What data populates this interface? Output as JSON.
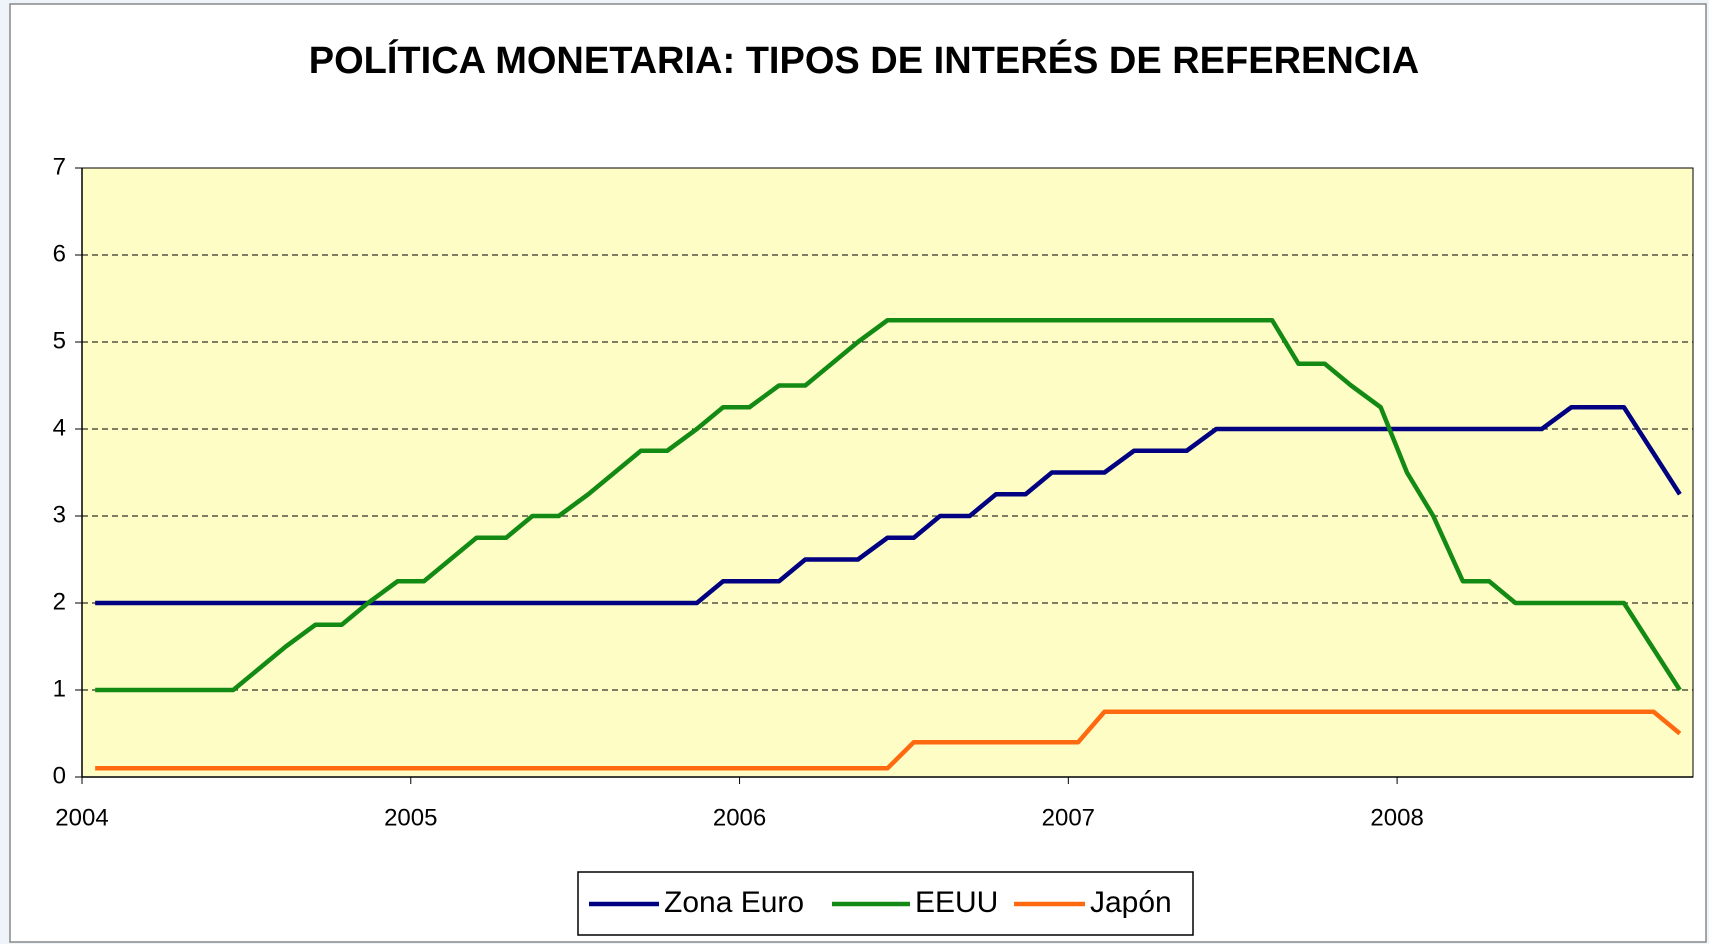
{
  "chart_data": {
    "type": "line",
    "title": "POLÍTICA MONETARIA: TIPOS DE INTERÉS DE REFERENCIA",
    "xlim": [
      2004,
      2008.9
    ],
    "xticks": [
      2004,
      2005,
      2006,
      2007,
      2008
    ],
    "ylim": [
      0,
      7
    ],
    "yticks": [
      0,
      1,
      2,
      3,
      4,
      5,
      6,
      7
    ],
    "grid": true,
    "legend": "bottom",
    "series": [
      {
        "name": "Zona Euro",
        "color": "#000080",
        "x": [
          2004.04,
          2005.87,
          2005.95,
          2006.12,
          2006.2,
          2006.36,
          2006.45,
          2006.53,
          2006.61,
          2006.7,
          2006.78,
          2006.87,
          2006.95,
          2007.11,
          2007.2,
          2007.36,
          2007.45,
          2008.44,
          2008.53,
          2008.69,
          2008.86
        ],
        "values": [
          2,
          2,
          2.25,
          2.25,
          2.5,
          2.5,
          2.75,
          2.75,
          3,
          3,
          3.25,
          3.25,
          3.5,
          3.5,
          3.75,
          3.75,
          4,
          4,
          4.25,
          4.25,
          3.25
        ]
      },
      {
        "name": "EEUU",
        "color": "#138a13",
        "x": [
          2004.04,
          2004.46,
          2004.54,
          2004.62,
          2004.71,
          2004.79,
          2004.87,
          2004.96,
          2005.04,
          2005.12,
          2005.2,
          2005.29,
          2005.37,
          2005.45,
          2005.54,
          2005.62,
          2005.7,
          2005.78,
          2005.87,
          2005.95,
          2006.03,
          2006.12,
          2006.2,
          2006.28,
          2006.36,
          2006.45,
          2007.62,
          2007.7,
          2007.78,
          2007.86,
          2007.95,
          2008.03,
          2008.11,
          2008.2,
          2008.28,
          2008.36,
          2008.69,
          2008.86
        ],
        "values": [
          1,
          1,
          1.25,
          1.5,
          1.75,
          1.75,
          2,
          2.25,
          2.25,
          2.5,
          2.75,
          2.75,
          3,
          3,
          3.25,
          3.5,
          3.75,
          3.75,
          4,
          4.25,
          4.25,
          4.5,
          4.5,
          4.75,
          5,
          5.25,
          5.25,
          4.75,
          4.75,
          4.5,
          4.25,
          3.5,
          3,
          2.25,
          2.25,
          2,
          2,
          1
        ]
      },
      {
        "name": "Japón",
        "color": "#ff6a10",
        "x": [
          2004.04,
          2006.45,
          2006.53,
          2007.03,
          2007.11,
          2008.78,
          2008.86
        ],
        "values": [
          0.1,
          0.1,
          0.4,
          0.4,
          0.75,
          0.75,
          0.5
        ]
      }
    ]
  }
}
